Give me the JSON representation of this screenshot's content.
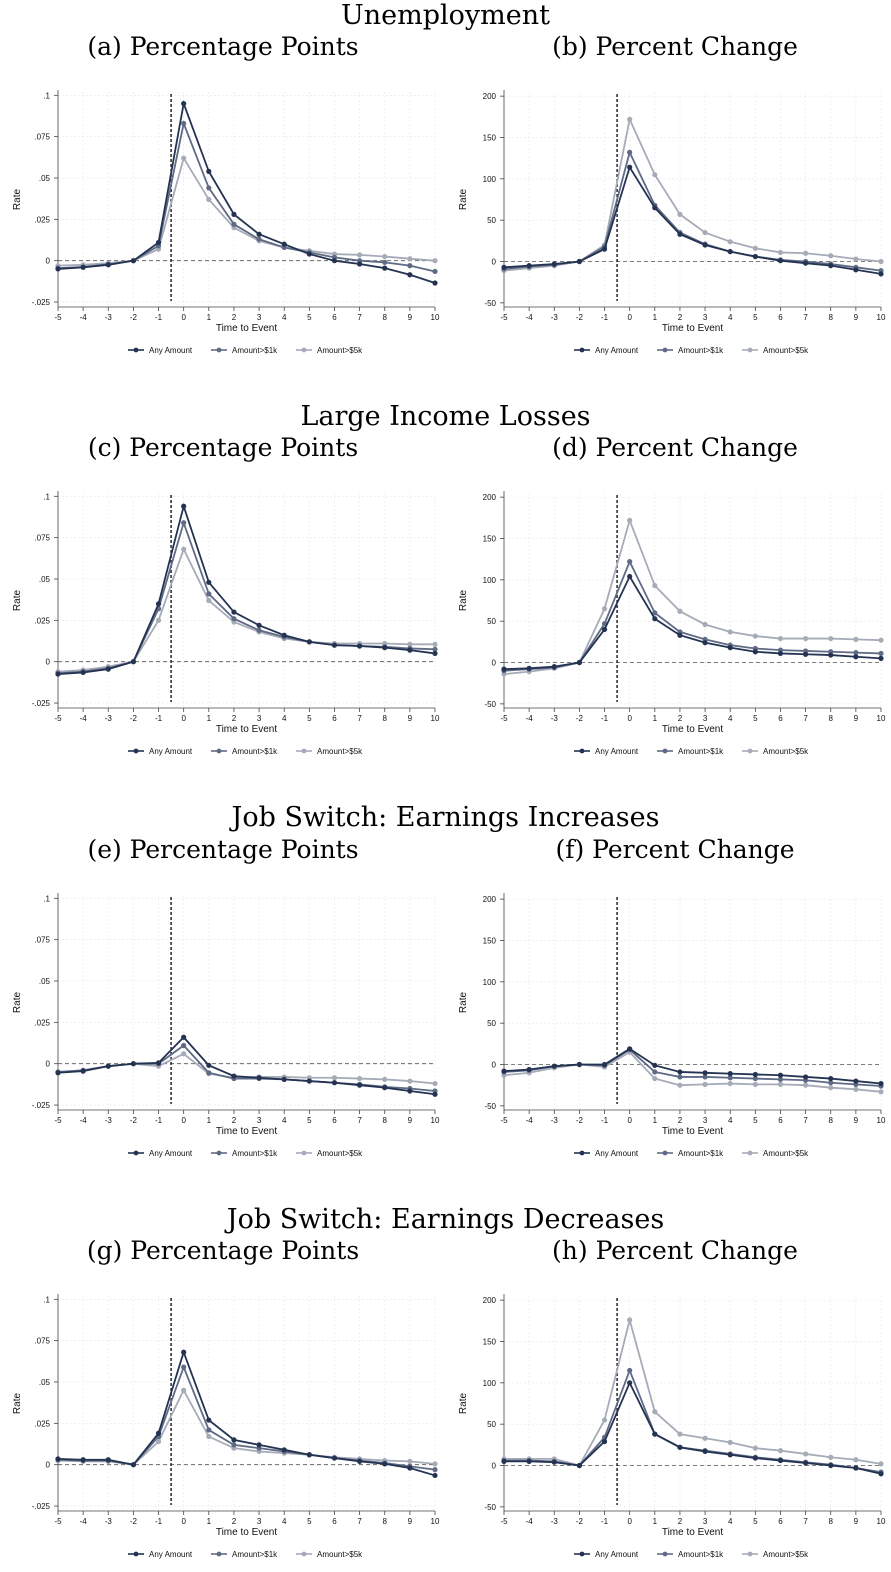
{
  "sections": [
    {
      "title": "Unemployment"
    },
    {
      "title": "Large Income Losses"
    },
    {
      "title": "Job Switch: Earnings Increases"
    },
    {
      "title": "Job Switch: Earnings Decreases"
    }
  ],
  "legend_labels": [
    "Any Amount",
    "Amount>$1k",
    "Amount>$5k"
  ],
  "colors": {
    "series": [
      "#243352",
      "#5f6a85",
      "#a6abb8"
    ],
    "zero_line": "#555555",
    "event_line": "#333333",
    "grid": "#e6e6e6"
  },
  "chart_data": [
    {
      "type": "line",
      "title": "(a) Percentage Points",
      "xlabel": "Time to Event",
      "ylabel": "Rate",
      "x": [
        -5,
        -4,
        -3,
        -2,
        -1,
        0,
        1,
        2,
        3,
        4,
        5,
        6,
        7,
        8,
        9,
        10
      ],
      "yticks": [
        -0.025,
        0,
        0.025,
        0.05,
        0.075,
        0.1
      ],
      "ytick_labels": [
        "-.025",
        "0",
        ".025",
        ".05",
        ".075",
        ".1"
      ],
      "ylim": [
        -0.028,
        0.102
      ],
      "series": [
        {
          "name": "Any Amount",
          "values": [
            -0.005,
            -0.004,
            -0.0025,
            0,
            0.011,
            0.095,
            0.054,
            0.028,
            0.016,
            0.01,
            0.004,
            0.0,
            -0.002,
            -0.0045,
            -0.0085,
            -0.0135
          ]
        },
        {
          "name": "Amount>$1k",
          "values": [
            -0.0045,
            -0.0038,
            -0.0022,
            0,
            0.009,
            0.083,
            0.044,
            0.022,
            0.013,
            0.008,
            0.005,
            0.002,
            0.0,
            -0.001,
            -0.003,
            -0.0065
          ]
        },
        {
          "name": "Amount>$5k",
          "values": [
            -0.003,
            -0.0025,
            -0.0015,
            0,
            0.007,
            0.062,
            0.037,
            0.02,
            0.012,
            0.008,
            0.006,
            0.004,
            0.0035,
            0.0025,
            0.0012,
            0.0
          ]
        }
      ]
    },
    {
      "type": "line",
      "title": "(b) Percent Change",
      "xlabel": "Time to Event",
      "ylabel": "Rate",
      "x": [
        -5,
        -4,
        -3,
        -2,
        -1,
        0,
        1,
        2,
        3,
        4,
        5,
        6,
        7,
        8,
        9,
        10
      ],
      "yticks": [
        -50,
        0,
        50,
        100,
        150,
        200
      ],
      "ytick_labels": [
        "-50",
        "0",
        "50",
        "100",
        "150",
        "200"
      ],
      "ylim": [
        -55,
        205
      ],
      "series": [
        {
          "name": "Any Amount",
          "values": [
            -7,
            -5,
            -3,
            0,
            15,
            114,
            65,
            33,
            20,
            12,
            6,
            1,
            -2,
            -5,
            -10,
            -15
          ]
        },
        {
          "name": "Amount>$1k",
          "values": [
            -9,
            -6,
            -4,
            0,
            18,
            132,
            68,
            35,
            21,
            12,
            6,
            2,
            0,
            -3,
            -7,
            -11
          ]
        },
        {
          "name": "Amount>$5k",
          "values": [
            -11,
            -8,
            -5,
            0,
            20,
            172,
            105,
            57,
            35,
            24,
            16,
            11,
            10,
            7,
            3,
            0
          ]
        }
      ]
    },
    {
      "type": "line",
      "title": "(c) Percentage Points",
      "xlabel": "Time to Event",
      "ylabel": "Rate",
      "x": [
        -5,
        -4,
        -3,
        -2,
        -1,
        0,
        1,
        2,
        3,
        4,
        5,
        6,
        7,
        8,
        9,
        10
      ],
      "yticks": [
        -0.025,
        0,
        0.025,
        0.05,
        0.075,
        0.1
      ],
      "ytick_labels": [
        "-.025",
        "0",
        ".025",
        ".05",
        ".075",
        ".1"
      ],
      "ylim": [
        -0.028,
        0.102
      ],
      "series": [
        {
          "name": "Any Amount",
          "values": [
            -0.0075,
            -0.0065,
            -0.0045,
            0,
            0.035,
            0.094,
            0.048,
            0.03,
            0.022,
            0.016,
            0.012,
            0.01,
            0.0095,
            0.0085,
            0.007,
            0.005
          ]
        },
        {
          "name": "Amount>$1k",
          "values": [
            -0.007,
            -0.006,
            -0.004,
            0,
            0.032,
            0.084,
            0.041,
            0.026,
            0.019,
            0.015,
            0.012,
            0.01,
            0.0095,
            0.009,
            0.008,
            0.0075
          ]
        },
        {
          "name": "Amount>$5k",
          "values": [
            -0.006,
            -0.005,
            -0.003,
            0,
            0.025,
            0.068,
            0.037,
            0.024,
            0.018,
            0.014,
            0.012,
            0.011,
            0.011,
            0.011,
            0.0105,
            0.0105
          ]
        }
      ]
    },
    {
      "type": "line",
      "title": "(d) Percent Change",
      "xlabel": "Time to Event",
      "ylabel": "Rate",
      "x": [
        -5,
        -4,
        -3,
        -2,
        -1,
        0,
        1,
        2,
        3,
        4,
        5,
        6,
        7,
        8,
        9,
        10
      ],
      "yticks": [
        -50,
        0,
        50,
        100,
        150,
        200
      ],
      "ytick_labels": [
        "-50",
        "0",
        "50",
        "100",
        "150",
        "200"
      ],
      "ylim": [
        -55,
        205
      ],
      "series": [
        {
          "name": "Any Amount",
          "values": [
            -8,
            -7,
            -5,
            0,
            40,
            104,
            53,
            33,
            24,
            18,
            13,
            11,
            10,
            9,
            7,
            5
          ]
        },
        {
          "name": "Amount>$1k",
          "values": [
            -10,
            -8,
            -6,
            0,
            47,
            122,
            60,
            37,
            28,
            21,
            17,
            15,
            14,
            13,
            12,
            11
          ]
        },
        {
          "name": "Amount>$5k",
          "values": [
            -14,
            -11,
            -7,
            0,
            65,
            172,
            93,
            62,
            46,
            37,
            32,
            29,
            29,
            29,
            28,
            27
          ]
        }
      ]
    },
    {
      "type": "line",
      "title": "(e) Percentage Points",
      "xlabel": "Time to Event",
      "ylabel": "Rate",
      "x": [
        -5,
        -4,
        -3,
        -2,
        -1,
        0,
        1,
        2,
        3,
        4,
        5,
        6,
        7,
        8,
        9,
        10
      ],
      "yticks": [
        -0.025,
        0,
        0.025,
        0.05,
        0.075,
        0.1
      ],
      "ytick_labels": [
        "-.025",
        "0",
        ".025",
        ".05",
        ".075",
        ".1"
      ],
      "ylim": [
        -0.028,
        0.102
      ],
      "series": [
        {
          "name": "Any Amount",
          "values": [
            -0.0055,
            -0.0045,
            -0.0015,
            0,
            0.0005,
            0.016,
            -0.001,
            -0.0075,
            -0.0085,
            -0.0095,
            -0.0105,
            -0.0115,
            -0.013,
            -0.0145,
            -0.0165,
            -0.0185
          ]
        },
        {
          "name": "Amount>$1k",
          "values": [
            -0.005,
            -0.004,
            -0.0015,
            0,
            0.0,
            0.011,
            -0.0055,
            -0.009,
            -0.009,
            -0.0095,
            -0.0105,
            -0.0115,
            -0.0125,
            -0.014,
            -0.015,
            -0.0165
          ]
        },
        {
          "name": "Amount>$5k",
          "values": [
            -0.005,
            -0.004,
            -0.0015,
            0,
            -0.0015,
            0.006,
            -0.006,
            -0.0085,
            -0.008,
            -0.008,
            -0.0085,
            -0.0085,
            -0.009,
            -0.0095,
            -0.0105,
            -0.012
          ]
        }
      ]
    },
    {
      "type": "line",
      "title": "(f) Percent Change",
      "xlabel": "Time to Event",
      "ylabel": "Rate",
      "x": [
        -5,
        -4,
        -3,
        -2,
        -1,
        0,
        1,
        2,
        3,
        4,
        5,
        6,
        7,
        8,
        9,
        10
      ],
      "yticks": [
        -50,
        0,
        50,
        100,
        150,
        200
      ],
      "ytick_labels": [
        "-50",
        "0",
        "50",
        "100",
        "150",
        "200"
      ],
      "ylim": [
        -55,
        205
      ],
      "series": [
        {
          "name": "Any Amount",
          "values": [
            -8,
            -6,
            -2,
            0,
            0,
            19,
            -1,
            -9,
            -10,
            -11,
            -12,
            -13,
            -15,
            -17,
            -20,
            -23
          ]
        },
        {
          "name": "Amount>$1k",
          "values": [
            -9,
            -7,
            -2,
            0,
            -1,
            18,
            -9,
            -15,
            -15,
            -16,
            -17,
            -18,
            -19,
            -22,
            -24,
            -26
          ]
        },
        {
          "name": "Amount>$5k",
          "values": [
            -13,
            -10,
            -4,
            0,
            -3,
            15,
            -17,
            -25,
            -24,
            -23,
            -24,
            -24,
            -25,
            -28,
            -30,
            -33
          ]
        }
      ]
    },
    {
      "type": "line",
      "title": "(g) Percentage Points",
      "xlabel": "Time to Event",
      "ylabel": "Rate",
      "x": [
        -5,
        -4,
        -3,
        -2,
        -1,
        0,
        1,
        2,
        3,
        4,
        5,
        6,
        7,
        8,
        9,
        10
      ],
      "yticks": [
        -0.025,
        0,
        0.025,
        0.05,
        0.075,
        0.1
      ],
      "ytick_labels": [
        "-.025",
        "0",
        ".025",
        ".05",
        ".075",
        ".1"
      ],
      "ylim": [
        -0.028,
        0.102
      ],
      "series": [
        {
          "name": "Any Amount",
          "values": [
            0.0035,
            0.003,
            0.003,
            0,
            0.019,
            0.068,
            0.027,
            0.015,
            0.012,
            0.009,
            0.006,
            0.004,
            0.002,
            0.0005,
            -0.002,
            -0.0065
          ]
        },
        {
          "name": "Amount>$1k",
          "values": [
            0.003,
            0.0025,
            0.0025,
            0,
            0.017,
            0.059,
            0.021,
            0.012,
            0.01,
            0.008,
            0.006,
            0.004,
            0.0025,
            0.001,
            -0.001,
            -0.003
          ]
        },
        {
          "name": "Amount>$5k",
          "values": [
            0.0025,
            0.002,
            0.002,
            0,
            0.014,
            0.045,
            0.017,
            0.01,
            0.008,
            0.007,
            0.006,
            0.0045,
            0.0035,
            0.0025,
            0.002,
            0.0005
          ]
        }
      ]
    },
    {
      "type": "line",
      "title": "(h) Percent Change",
      "xlabel": "Time to Event",
      "ylabel": "Rate",
      "x": [
        -5,
        -4,
        -3,
        -2,
        -1,
        0,
        1,
        2,
        3,
        4,
        5,
        6,
        7,
        8,
        9,
        10
      ],
      "yticks": [
        -50,
        0,
        50,
        100,
        150,
        200
      ],
      "ytick_labels": [
        "-50",
        "0",
        "50",
        "100",
        "150",
        "200"
      ],
      "ylim": [
        -55,
        205
      ],
      "series": [
        {
          "name": "Any Amount",
          "values": [
            5,
            5,
            4,
            0,
            29,
            100,
            38,
            22,
            17,
            13,
            9,
            6,
            3,
            0,
            -3,
            -10
          ]
        },
        {
          "name": "Amount>$1k",
          "values": [
            6,
            6,
            5,
            0,
            34,
            115,
            38,
            22,
            18,
            14,
            10,
            7,
            4,
            1,
            -3,
            -8
          ]
        },
        {
          "name": "Amount>$5k",
          "values": [
            8,
            8,
            8,
            0,
            55,
            176,
            65,
            38,
            33,
            28,
            21,
            18,
            14,
            10,
            7,
            2
          ]
        }
      ]
    }
  ]
}
